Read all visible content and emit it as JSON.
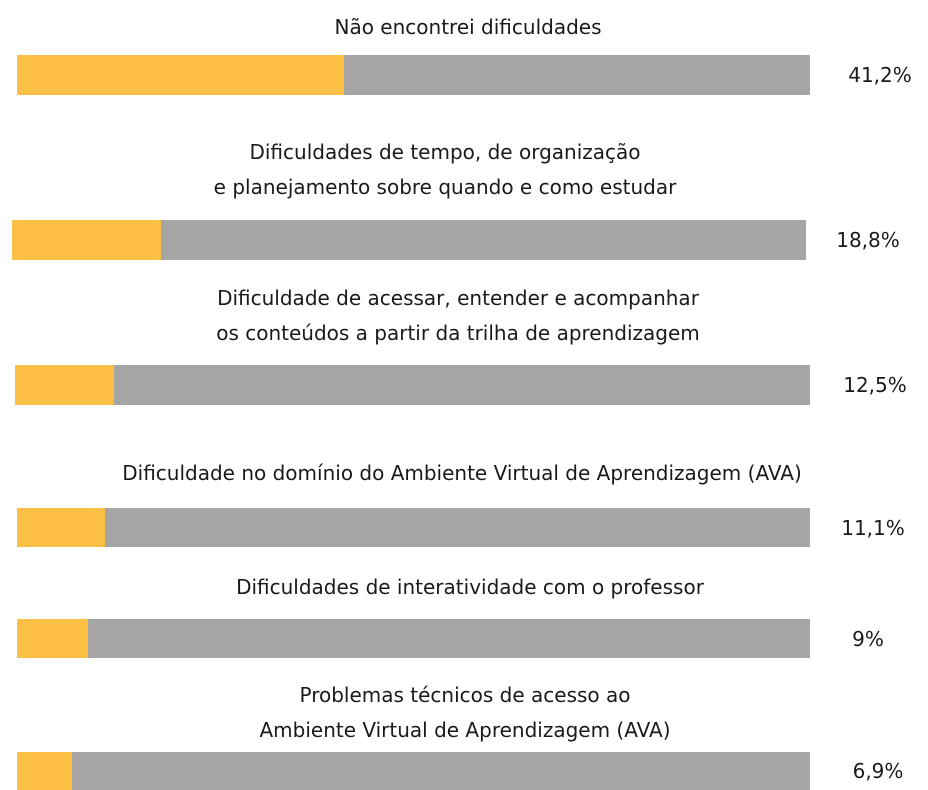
{
  "chart_data": {
    "type": "bar",
    "orientation": "horizontal",
    "categories": [
      "Não encontrei dificuldades",
      "Dificuldades de tempo, de organização\ne planejamento sobre quando e como estudar",
      "Dificuldade de acessar, entender e acompanhar\nos conteúdos a partir da trilha de aprendizagem",
      "Dificuldade no domínio do Ambiente Virtual de Aprendizagem (AVA)",
      "Dificuldades de interatividade com o professor",
      "Problemas técnicos de acesso ao\nAmbiente Virtual de Aprendizagem (AVA)"
    ],
    "values": [
      41.2,
      18.8,
      12.5,
      11.1,
      9,
      6.9
    ],
    "value_labels": [
      "41,2%",
      "18,8%",
      "12,5%",
      "11,1%",
      "9%",
      "6,9%"
    ],
    "xlim": [
      0,
      100
    ],
    "color": "#fbbf45",
    "track_color": "#a5a5a5"
  }
}
